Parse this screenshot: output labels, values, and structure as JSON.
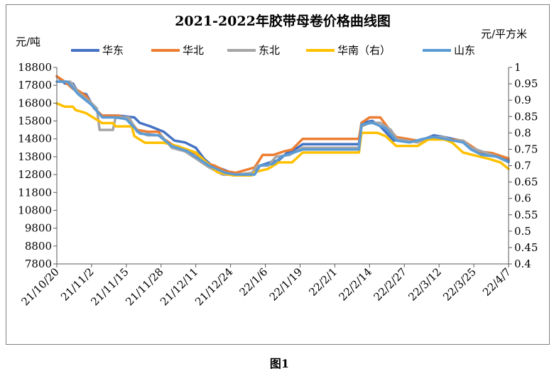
{
  "figure_caption": "图1",
  "chart_data": {
    "type": "line",
    "title": "2021-2022年胶带母卷价格曲线图",
    "ylabel": "元/吨",
    "y2label": "元/平方米",
    "ylim": [
      7800,
      18800
    ],
    "y_ticks": [
      "18800",
      "17800",
      "16800",
      "15800",
      "14800",
      "13800",
      "12800",
      "11800",
      "10800",
      "9800",
      "8800",
      "7800"
    ],
    "y2lim": [
      0.4,
      1.0
    ],
    "y2_ticks": [
      "1",
      "0.95",
      "0.9",
      "0.85",
      "0.8",
      "0.75",
      "0.7",
      "0.65",
      "0.6",
      "0.55",
      "0.5",
      "0.45",
      "0.4"
    ],
    "x_start": "2021-10-20",
    "x_end": "2022-04-07",
    "x_ticks": [
      "21/10/20",
      "21/11/2",
      "21/11/15",
      "21/11/28",
      "21/12/11",
      "21/12/24",
      "22/1/6",
      "22/1/19",
      "22/2/1",
      "22/2/14",
      "22/2/27",
      "22/3/12",
      "22/3/25",
      "22/4/7"
    ],
    "legend_position": "top",
    "grid": false,
    "series": [
      {
        "name": "华东",
        "color": "#4472c4",
        "axis": "left",
        "points": [
          [
            "2021-10-20",
            18300
          ],
          [
            "2021-10-23",
            17900
          ],
          [
            "2021-10-26",
            17900
          ],
          [
            "2021-10-28",
            17400
          ],
          [
            "2021-10-31",
            17300
          ],
          [
            "2021-11-03",
            16500
          ],
          [
            "2021-11-06",
            16100
          ],
          [
            "2021-11-12",
            16100
          ],
          [
            "2021-11-18",
            16000
          ],
          [
            "2021-11-20",
            15700
          ],
          [
            "2021-11-24",
            15500
          ],
          [
            "2021-11-29",
            15200
          ],
          [
            "2021-12-03",
            14700
          ],
          [
            "2021-12-07",
            14600
          ],
          [
            "2021-12-11",
            14300
          ],
          [
            "2021-12-14",
            13700
          ],
          [
            "2021-12-17",
            13300
          ],
          [
            "2021-12-21",
            13100
          ],
          [
            "2021-12-26",
            12800
          ],
          [
            "2022-01-02",
            12900
          ],
          [
            "2022-01-04",
            13300
          ],
          [
            "2022-01-08",
            13500
          ],
          [
            "2022-01-11",
            13600
          ],
          [
            "2022-01-14",
            14000
          ],
          [
            "2022-01-17",
            14200
          ],
          [
            "2022-01-20",
            14500
          ],
          [
            "2022-01-24",
            14500
          ],
          [
            "2022-02-10",
            14500
          ],
          [
            "2022-02-11",
            15700
          ],
          [
            "2022-02-15",
            15800
          ],
          [
            "2022-02-18",
            15500
          ],
          [
            "2022-02-23",
            14700
          ],
          [
            "2022-02-26",
            14800
          ],
          [
            "2022-03-01",
            14700
          ],
          [
            "2022-03-05",
            14700
          ],
          [
            "2022-03-10",
            15000
          ],
          [
            "2022-03-14",
            14900
          ],
          [
            "2022-03-20",
            14700
          ],
          [
            "2022-03-22",
            14500
          ],
          [
            "2022-03-27",
            14000
          ],
          [
            "2022-04-03",
            13900
          ],
          [
            "2022-04-07",
            13600
          ]
        ]
      },
      {
        "name": "华北",
        "color": "#ed7d31",
        "axis": "left",
        "points": [
          [
            "2021-10-20",
            18300
          ],
          [
            "2021-10-23",
            18000
          ],
          [
            "2021-10-26",
            17600
          ],
          [
            "2021-10-28",
            17500
          ],
          [
            "2021-10-31",
            17200
          ],
          [
            "2021-11-03",
            16500
          ],
          [
            "2021-11-06",
            16100
          ],
          [
            "2021-11-12",
            16100
          ],
          [
            "2021-11-16",
            15900
          ],
          [
            "2021-11-19",
            15300
          ],
          [
            "2021-11-23",
            15200
          ],
          [
            "2021-11-27",
            15200
          ],
          [
            "2021-11-29",
            14800
          ],
          [
            "2021-12-02",
            14500
          ],
          [
            "2021-12-07",
            14100
          ],
          [
            "2021-12-11",
            14000
          ],
          [
            "2021-12-14",
            13500
          ],
          [
            "2021-12-18",
            13300
          ],
          [
            "2021-12-22",
            13000
          ],
          [
            "2021-12-26",
            12900
          ],
          [
            "2022-01-02",
            13200
          ],
          [
            "2022-01-05",
            13900
          ],
          [
            "2022-01-09",
            13900
          ],
          [
            "2022-01-13",
            14100
          ],
          [
            "2022-01-16",
            14200
          ],
          [
            "2022-01-20",
            14800
          ],
          [
            "2022-01-24",
            14800
          ],
          [
            "2022-02-10",
            14800
          ],
          [
            "2022-02-11",
            15700
          ],
          [
            "2022-02-14",
            16000
          ],
          [
            "2022-02-18",
            16000
          ],
          [
            "2022-02-21",
            15400
          ],
          [
            "2022-02-24",
            14900
          ],
          [
            "2022-02-28",
            14800
          ],
          [
            "2022-03-04",
            14700
          ],
          [
            "2022-03-10",
            14900
          ],
          [
            "2022-03-14",
            14800
          ],
          [
            "2022-03-21",
            14700
          ],
          [
            "2022-03-24",
            14400
          ],
          [
            "2022-03-27",
            14100
          ],
          [
            "2022-04-01",
            14000
          ],
          [
            "2022-04-07",
            13700
          ]
        ]
      },
      {
        "name": "东北",
        "color": "#a5a5a5",
        "axis": "left",
        "points": [
          [
            "2021-10-20",
            18000
          ],
          [
            "2021-10-25",
            18000
          ],
          [
            "2021-10-28",
            17400
          ],
          [
            "2021-11-02",
            16800
          ],
          [
            "2021-11-04",
            16500
          ],
          [
            "2021-11-05",
            15300
          ],
          [
            "2021-11-10",
            15300
          ],
          [
            "2021-11-11",
            16000
          ],
          [
            "2021-11-16",
            16000
          ],
          [
            "2021-11-19",
            15200
          ],
          [
            "2021-11-23",
            15000
          ],
          [
            "2021-11-28",
            15000
          ],
          [
            "2021-12-02",
            14300
          ],
          [
            "2021-12-07",
            14100
          ],
          [
            "2021-12-11",
            13700
          ],
          [
            "2021-12-16",
            13200
          ],
          [
            "2021-12-21",
            12800
          ],
          [
            "2021-12-26",
            12800
          ],
          [
            "2022-01-01",
            12900
          ],
          [
            "2022-01-03",
            13300
          ],
          [
            "2022-01-07",
            13300
          ],
          [
            "2022-01-10",
            13800
          ],
          [
            "2022-01-15",
            13900
          ],
          [
            "2022-01-20",
            14300
          ],
          [
            "2022-02-10",
            14300
          ],
          [
            "2022-02-11",
            15500
          ],
          [
            "2022-02-14",
            15700
          ],
          [
            "2022-02-18",
            15700
          ],
          [
            "2022-02-22",
            15300
          ],
          [
            "2022-02-24",
            14800
          ],
          [
            "2022-03-04",
            14600
          ],
          [
            "2022-03-09",
            14900
          ],
          [
            "2022-03-14",
            14900
          ],
          [
            "2022-03-17",
            14700
          ],
          [
            "2022-03-21",
            14700
          ],
          [
            "2022-03-24",
            14300
          ],
          [
            "2022-03-28",
            14100
          ],
          [
            "2022-04-01",
            13900
          ],
          [
            "2022-04-07",
            13500
          ]
        ]
      },
      {
        "name": "华南（右）",
        "color": "#ffc000",
        "axis": "right",
        "points": [
          [
            "2021-10-20",
            0.89
          ],
          [
            "2021-10-23",
            0.88
          ],
          [
            "2021-10-26",
            0.88
          ],
          [
            "2021-10-27",
            0.87
          ],
          [
            "2021-10-31",
            0.86
          ],
          [
            "2021-11-04",
            0.84
          ],
          [
            "2021-11-06",
            0.83
          ],
          [
            "2021-11-10",
            0.83
          ],
          [
            "2021-11-11",
            0.82
          ],
          [
            "2021-11-17",
            0.82
          ],
          [
            "2021-11-18",
            0.79
          ],
          [
            "2021-11-22",
            0.77
          ],
          [
            "2021-11-29",
            0.77
          ],
          [
            "2021-12-04",
            0.76
          ],
          [
            "2021-12-11",
            0.74
          ],
          [
            "2021-12-15",
            0.71
          ],
          [
            "2021-12-19",
            0.68
          ],
          [
            "2021-12-25",
            0.67
          ],
          [
            "2022-01-01",
            0.67
          ],
          [
            "2022-01-02",
            0.68
          ],
          [
            "2022-01-07",
            0.69
          ],
          [
            "2022-01-11",
            0.71
          ],
          [
            "2022-01-16",
            0.71
          ],
          [
            "2022-01-20",
            0.74
          ],
          [
            "2022-02-10",
            0.74
          ],
          [
            "2022-02-11",
            0.8
          ],
          [
            "2022-02-17",
            0.8
          ],
          [
            "2022-02-20",
            0.79
          ],
          [
            "2022-02-24",
            0.76
          ],
          [
            "2022-03-01",
            0.76
          ],
          [
            "2022-03-04",
            0.76
          ],
          [
            "2022-03-08",
            0.78
          ],
          [
            "2022-03-14",
            0.78
          ],
          [
            "2022-03-17",
            0.77
          ],
          [
            "2022-03-21",
            0.74
          ],
          [
            "2022-03-26",
            0.73
          ],
          [
            "2022-03-31",
            0.72
          ],
          [
            "2022-04-04",
            0.71
          ],
          [
            "2022-04-07",
            0.69
          ]
        ]
      },
      {
        "name": "山东",
        "color": "#5b9bd5",
        "axis": "left",
        "points": [
          [
            "2021-10-20",
            18000
          ],
          [
            "2021-10-24",
            18000
          ],
          [
            "2021-10-28",
            17300
          ],
          [
            "2021-11-02",
            16700
          ],
          [
            "2021-11-06",
            16000
          ],
          [
            "2021-11-11",
            16000
          ],
          [
            "2021-11-15",
            15900
          ],
          [
            "2021-11-20",
            15100
          ],
          [
            "2021-11-27",
            15000
          ],
          [
            "2021-12-02",
            14400
          ],
          [
            "2021-12-08",
            14100
          ],
          [
            "2021-12-11",
            13800
          ],
          [
            "2021-12-16",
            13300
          ],
          [
            "2021-12-22",
            12900
          ],
          [
            "2021-12-26",
            12800
          ],
          [
            "2022-01-02",
            12800
          ],
          [
            "2022-01-04",
            13300
          ],
          [
            "2022-01-09",
            13400
          ],
          [
            "2022-01-12",
            13800
          ],
          [
            "2022-01-16",
            14000
          ],
          [
            "2022-01-20",
            14200
          ],
          [
            "2022-02-10",
            14200
          ],
          [
            "2022-02-11",
            15600
          ],
          [
            "2022-02-15",
            15700
          ],
          [
            "2022-02-20",
            15400
          ],
          [
            "2022-02-24",
            14700
          ],
          [
            "2022-03-01",
            14600
          ],
          [
            "2022-03-06",
            14800
          ],
          [
            "2022-03-10",
            14900
          ],
          [
            "2022-03-14",
            14800
          ],
          [
            "2022-03-21",
            14600
          ],
          [
            "2022-03-24",
            14200
          ],
          [
            "2022-03-28",
            13900
          ],
          [
            "2022-04-03",
            13800
          ],
          [
            "2022-04-07",
            13500
          ]
        ]
      }
    ]
  }
}
